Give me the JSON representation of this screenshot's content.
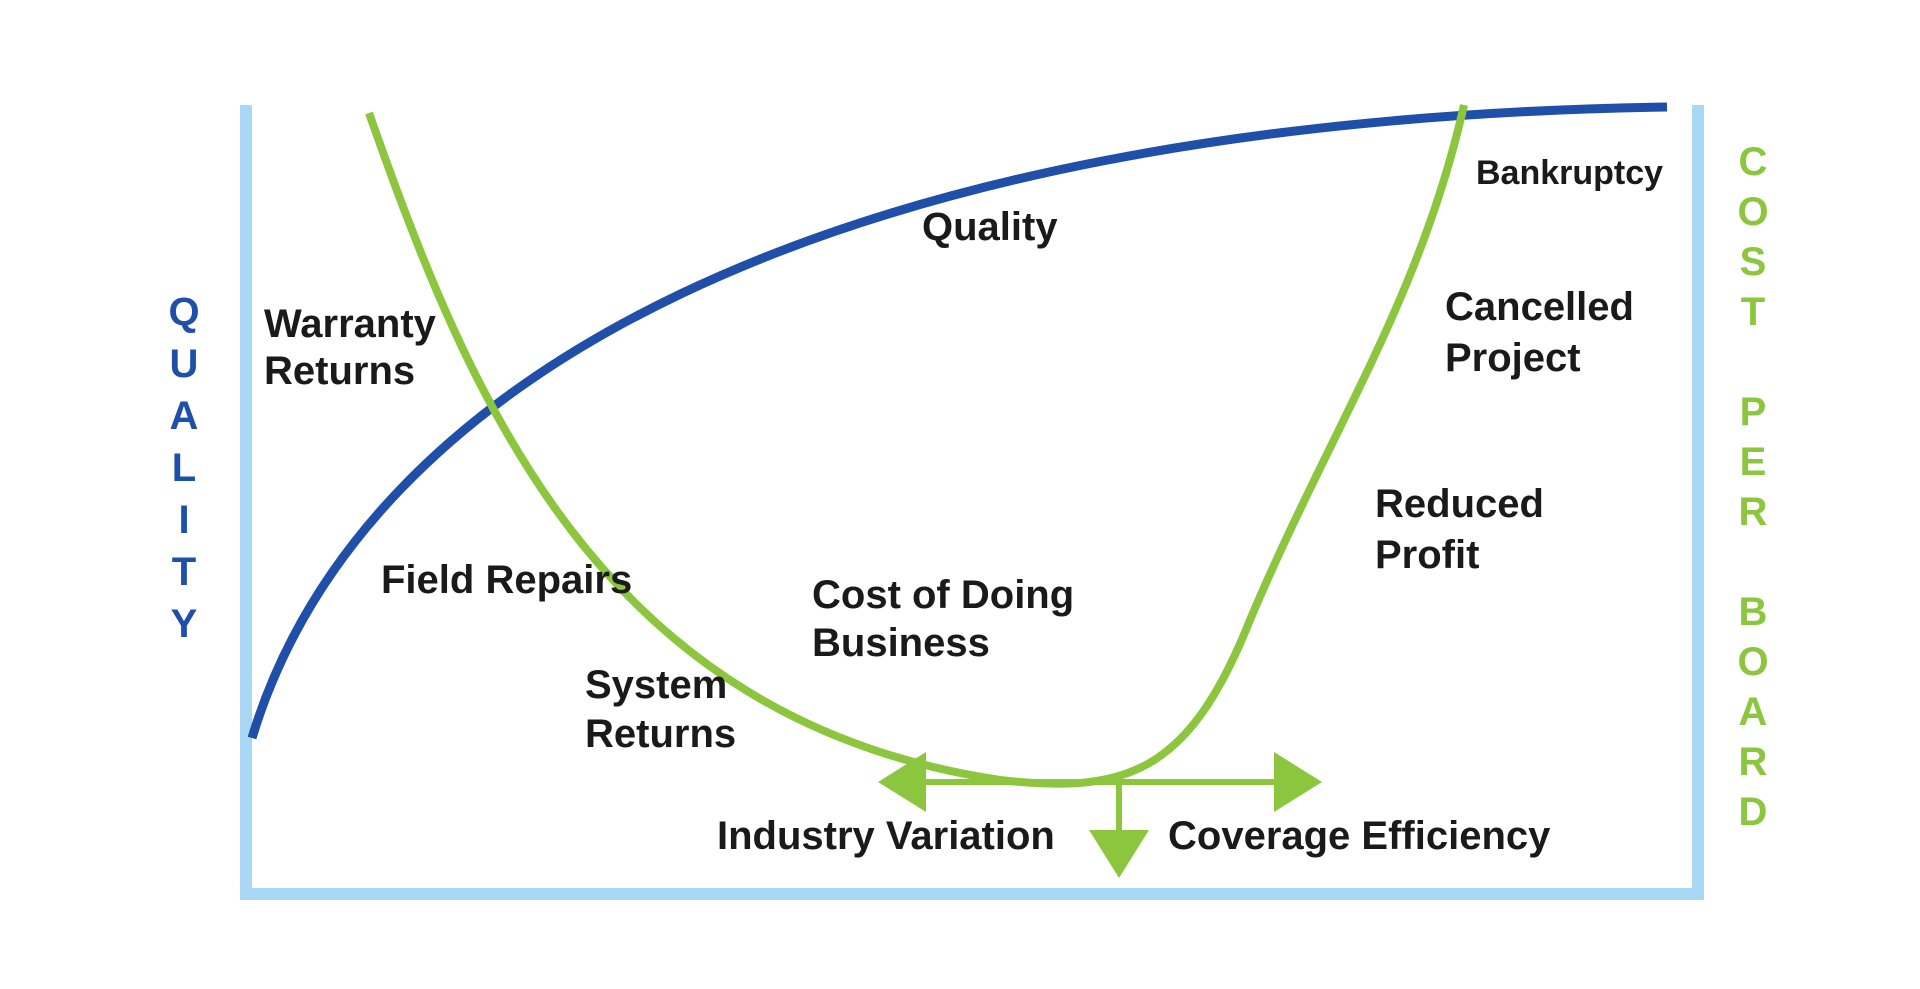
{
  "left_axis_label": "QUALITY",
  "right_axis_label": "COST PER BOARD",
  "curve_labels": {
    "quality": "Quality",
    "cost": [
      "Cost of Doing",
      "Business"
    ]
  },
  "annotations": {
    "warranty_returns": [
      "Warranty",
      "Returns"
    ],
    "field_repairs": "Field Repairs",
    "system_returns": [
      "System",
      "Returns"
    ],
    "bankruptcy": "Bankruptcy",
    "cancelled_project": [
      "Cancelled",
      "Project"
    ],
    "reduced_profit": [
      "Reduced",
      "Profit"
    ],
    "industry_variation": "Industry Variation",
    "coverage_efficiency": "Coverage Efficiency"
  }
}
